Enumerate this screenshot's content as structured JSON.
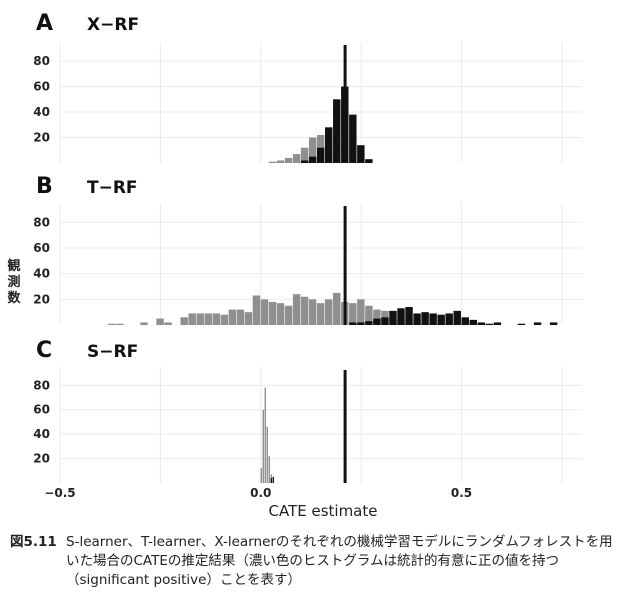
{
  "chart_data": {
    "type": "bar",
    "title": "",
    "xlabel": "CATE estimate",
    "ylabel": "観測数",
    "xlim": [
      -0.5,
      0.8
    ],
    "bin_width": 0.02,
    "x_ticks": [
      "−0.5",
      "0.0",
      "0.5"
    ],
    "x_tick_values": [
      -0.5,
      0.0,
      0.5
    ],
    "y_ticks": [
      "20",
      "40",
      "60",
      "80"
    ],
    "y_tick_values": [
      20,
      40,
      60,
      80
    ],
    "reference_line_x": 0.21,
    "colors": {
      "light": "#8f8f8f",
      "dark": "#111111",
      "grid": "#ebebeb",
      "refline": "#111111"
    },
    "panels": [
      {
        "letter": "A",
        "title": "X−RF",
        "ylim": [
          0,
          95
        ],
        "bins": [
          {
            "x": 0.03,
            "light": 1,
            "dark": 0
          },
          {
            "x": 0.05,
            "light": 2,
            "dark": 0
          },
          {
            "x": 0.07,
            "light": 4,
            "dark": 0
          },
          {
            "x": 0.09,
            "light": 7,
            "dark": 0
          },
          {
            "x": 0.11,
            "light": 12,
            "dark": 2
          },
          {
            "x": 0.13,
            "light": 20,
            "dark": 5
          },
          {
            "x": 0.15,
            "light": 22,
            "dark": 12
          },
          {
            "x": 0.17,
            "light": 12,
            "dark": 28
          },
          {
            "x": 0.19,
            "light": 5,
            "dark": 50
          },
          {
            "x": 0.21,
            "light": 2,
            "dark": 60
          },
          {
            "x": 0.23,
            "light": 0,
            "dark": 38
          },
          {
            "x": 0.25,
            "light": 0,
            "dark": 14
          },
          {
            "x": 0.27,
            "light": 0,
            "dark": 3
          }
        ]
      },
      {
        "letter": "B",
        "title": "T−RF",
        "ylim": [
          0,
          95
        ],
        "bins": [
          {
            "x": -0.37,
            "light": 1,
            "dark": 0
          },
          {
            "x": -0.35,
            "light": 1,
            "dark": 0
          },
          {
            "x": -0.29,
            "light": 2,
            "dark": 0
          },
          {
            "x": -0.25,
            "light": 5,
            "dark": 0
          },
          {
            "x": -0.23,
            "light": 2,
            "dark": 0
          },
          {
            "x": -0.19,
            "light": 6,
            "dark": 0
          },
          {
            "x": -0.17,
            "light": 9,
            "dark": 0
          },
          {
            "x": -0.15,
            "light": 9,
            "dark": 0
          },
          {
            "x": -0.13,
            "light": 9,
            "dark": 0
          },
          {
            "x": -0.11,
            "light": 9,
            "dark": 0
          },
          {
            "x": -0.09,
            "light": 8,
            "dark": 0
          },
          {
            "x": -0.07,
            "light": 12,
            "dark": 0
          },
          {
            "x": -0.05,
            "light": 12,
            "dark": 0
          },
          {
            "x": -0.03,
            "light": 10,
            "dark": 0
          },
          {
            "x": -0.01,
            "light": 23,
            "dark": 0
          },
          {
            "x": 0.01,
            "light": 20,
            "dark": 0
          },
          {
            "x": 0.03,
            "light": 18,
            "dark": 0
          },
          {
            "x": 0.05,
            "light": 17,
            "dark": 0
          },
          {
            "x": 0.07,
            "light": 15,
            "dark": 0
          },
          {
            "x": 0.09,
            "light": 24,
            "dark": 0
          },
          {
            "x": 0.11,
            "light": 22,
            "dark": 0
          },
          {
            "x": 0.13,
            "light": 20,
            "dark": 0
          },
          {
            "x": 0.15,
            "light": 17,
            "dark": 0
          },
          {
            "x": 0.17,
            "light": 20,
            "dark": 0
          },
          {
            "x": 0.19,
            "light": 25,
            "dark": 0
          },
          {
            "x": 0.21,
            "light": 18,
            "dark": 0
          },
          {
            "x": 0.23,
            "light": 17,
            "dark": 2
          },
          {
            "x": 0.25,
            "light": 20,
            "dark": 2
          },
          {
            "x": 0.27,
            "light": 15,
            "dark": 3
          },
          {
            "x": 0.29,
            "light": 12,
            "dark": 5
          },
          {
            "x": 0.31,
            "light": 11,
            "dark": 6
          },
          {
            "x": 0.33,
            "light": 5,
            "dark": 11
          },
          {
            "x": 0.35,
            "light": 5,
            "dark": 13
          },
          {
            "x": 0.37,
            "light": 2,
            "dark": 14
          },
          {
            "x": 0.39,
            "light": 2,
            "dark": 9
          },
          {
            "x": 0.41,
            "light": 1,
            "dark": 10
          },
          {
            "x": 0.43,
            "light": 1,
            "dark": 9
          },
          {
            "x": 0.45,
            "light": 1,
            "dark": 8
          },
          {
            "x": 0.47,
            "light": 1,
            "dark": 9
          },
          {
            "x": 0.49,
            "light": 0,
            "dark": 11
          },
          {
            "x": 0.51,
            "light": 1,
            "dark": 6
          },
          {
            "x": 0.53,
            "light": 0,
            "dark": 4
          },
          {
            "x": 0.55,
            "light": 0,
            "dark": 2
          },
          {
            "x": 0.57,
            "light": 0,
            "dark": 1
          },
          {
            "x": 0.59,
            "light": 0,
            "dark": 2
          },
          {
            "x": 0.65,
            "light": 0,
            "dark": 1
          },
          {
            "x": 0.69,
            "light": 0,
            "dark": 2
          },
          {
            "x": 0.73,
            "light": 0,
            "dark": 2
          }
        ]
      },
      {
        "letter": "C",
        "title": "S−RF",
        "ylim": [
          0,
          95
        ],
        "bins": [
          {
            "x": 0.002,
            "light": 12,
            "dark": 0
          },
          {
            "x": 0.007,
            "light": 60,
            "dark": 0
          },
          {
            "x": 0.012,
            "light": 78,
            "dark": 0
          },
          {
            "x": 0.017,
            "light": 46,
            "dark": 0
          },
          {
            "x": 0.022,
            "light": 22,
            "dark": 0
          },
          {
            "x": 0.027,
            "light": 7,
            "dark": 4
          },
          {
            "x": 0.032,
            "light": 1,
            "dark": 5
          }
        ],
        "bin_width_override": 0.005
      }
    ]
  },
  "caption": {
    "label": "図5.11",
    "text": "S-learner、T-learner、X-learnerのそれぞれの機械学習モデルにランダムフォレストを用いた場合のCATEの推定結果（濃い色のヒストグラムは統計的有意に正の値を持つ（significant positive）ことを表す）"
  }
}
